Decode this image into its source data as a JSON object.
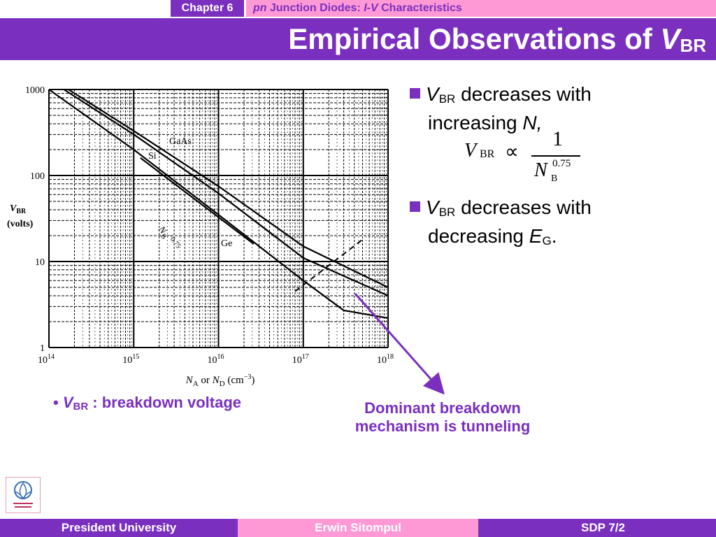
{
  "header": {
    "chapter": "Chapter 6",
    "topic_pn": "pn",
    "topic_mid": " Junction Diodes: ",
    "topic_iv": "I-V",
    "topic_end": " Characteristics"
  },
  "title": {
    "main": "Empirical Observations of ",
    "v": "V",
    "sub": "BR"
  },
  "bullets": [
    {
      "v": "V",
      "sub": "BR",
      "text1": " decreases with",
      "text2": "increasing ",
      "var": "N,",
      "varsub": ""
    },
    {
      "v": "V",
      "sub": "BR",
      "text1": " decreases with",
      "text2": "decreasing ",
      "var": "E",
      "varsub": "G",
      "end": "."
    }
  ],
  "formula": {
    "v": "V",
    "vsub": "BR",
    "prop": "∝",
    "num": "1",
    "den": "N",
    "densub": "B",
    "exp": "0.75"
  },
  "bottom_note": {
    "v": "V",
    "sub": "BR",
    "text": " : breakdown voltage"
  },
  "annotation": {
    "line1": "Dominant breakdown",
    "line2": "mechanism is tunneling"
  },
  "colors": {
    "purple": "#7a2fbf",
    "pink": "#ff99d6"
  },
  "chart_data": {
    "type": "line",
    "xscale": "log",
    "yscale": "log",
    "xlim": [
      100000000000000.0,
      1e+18
    ],
    "ylim": [
      1,
      1000
    ],
    "xticks": [
      {
        "v": 100000000000000.0,
        "base": "10",
        "exp": "14"
      },
      {
        "v": 1000000000000000.0,
        "base": "10",
        "exp": "15"
      },
      {
        "v": 1e+16,
        "base": "10",
        "exp": "16"
      },
      {
        "v": 1e+17,
        "base": "10",
        "exp": "17"
      },
      {
        "v": 1e+18,
        "base": "10",
        "exp": "18"
      }
    ],
    "yticks": [
      {
        "v": 1000,
        "label": "1000"
      },
      {
        "v": 100,
        "label": "100"
      },
      {
        "v": 10,
        "label": "10"
      },
      {
        "v": 1,
        "label": "1"
      }
    ],
    "xlabel": {
      "a": "N",
      "asub": "A",
      "mid": " or ",
      "d": "N",
      "dsub": "D",
      "unit": " (cm",
      "unitexp": "−3",
      "close": ")"
    },
    "ylabel": {
      "v": "V",
      "sub": "BR",
      "unit": "(volts)"
    },
    "grid": true,
    "series": [
      {
        "name": "GaAs",
        "points": [
          [
            170000000000000.0,
            1000
          ],
          [
            1000000000000000.0,
            330
          ],
          [
            1e+16,
            75
          ],
          [
            1e+17,
            15
          ],
          [
            1e+18,
            5
          ]
        ]
      },
      {
        "name": "Si",
        "points": [
          [
            150000000000000.0,
            1000
          ],
          [
            1000000000000000.0,
            300
          ],
          [
            1e+16,
            62
          ],
          [
            1e+17,
            11
          ],
          [
            1e+18,
            4
          ]
        ]
      },
      {
        "name": "Ge",
        "points": [
          [
            100000000000000.0,
            1000
          ],
          [
            1000000000000000.0,
            200
          ],
          [
            1e+16,
            35
          ],
          [
            1e+17,
            6
          ],
          [
            3e+17,
            2.7
          ],
          [
            1e+18,
            2.2
          ]
        ]
      },
      {
        "name": "N_B^-0.75",
        "label_base": "N",
        "label_sub": "B",
        "label_exp": "−0.75",
        "points": [
          [
            1200000000000000.0,
            160
          ],
          [
            2.6e+16,
            16
          ]
        ]
      }
    ],
    "tunneling_boundary": [
      [
        8e+16,
        4.5
      ],
      [
        5e+17,
        18
      ]
    ]
  }
}
